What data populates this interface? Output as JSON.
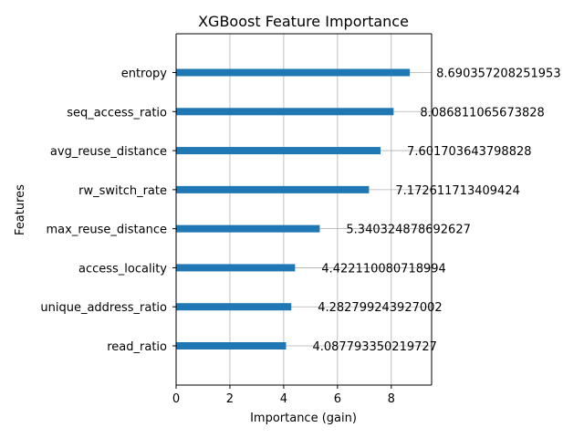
{
  "chart_data": {
    "type": "bar",
    "orientation": "horizontal",
    "title": "XGBoost Feature Importance",
    "xlabel": "Importance (gain)",
    "ylabel": "Features",
    "xlim": [
      0,
      9.5
    ],
    "xticks": [
      0,
      2,
      4,
      6,
      8
    ],
    "grid": true,
    "bar_color": "#1f77b4",
    "categories": [
      "entropy",
      "seq_access_ratio",
      "avg_reuse_distance",
      "rw_switch_rate",
      "max_reuse_distance",
      "access_locality",
      "unique_address_ratio",
      "read_ratio"
    ],
    "values": [
      8.690357208251953,
      8.086811065673828,
      7.601703643798828,
      7.172611713409424,
      5.340324878692627,
      4.422110080718994,
      4.282799243927002,
      4.087793350219727
    ],
    "value_labels": [
      "8.690357208251953",
      "8.086811065673828",
      "7.601703643798828",
      "7.172611713409424",
      "5.340324878692627",
      "4.422110080718994",
      "4.282799243927002",
      "4.087793350219727"
    ]
  }
}
